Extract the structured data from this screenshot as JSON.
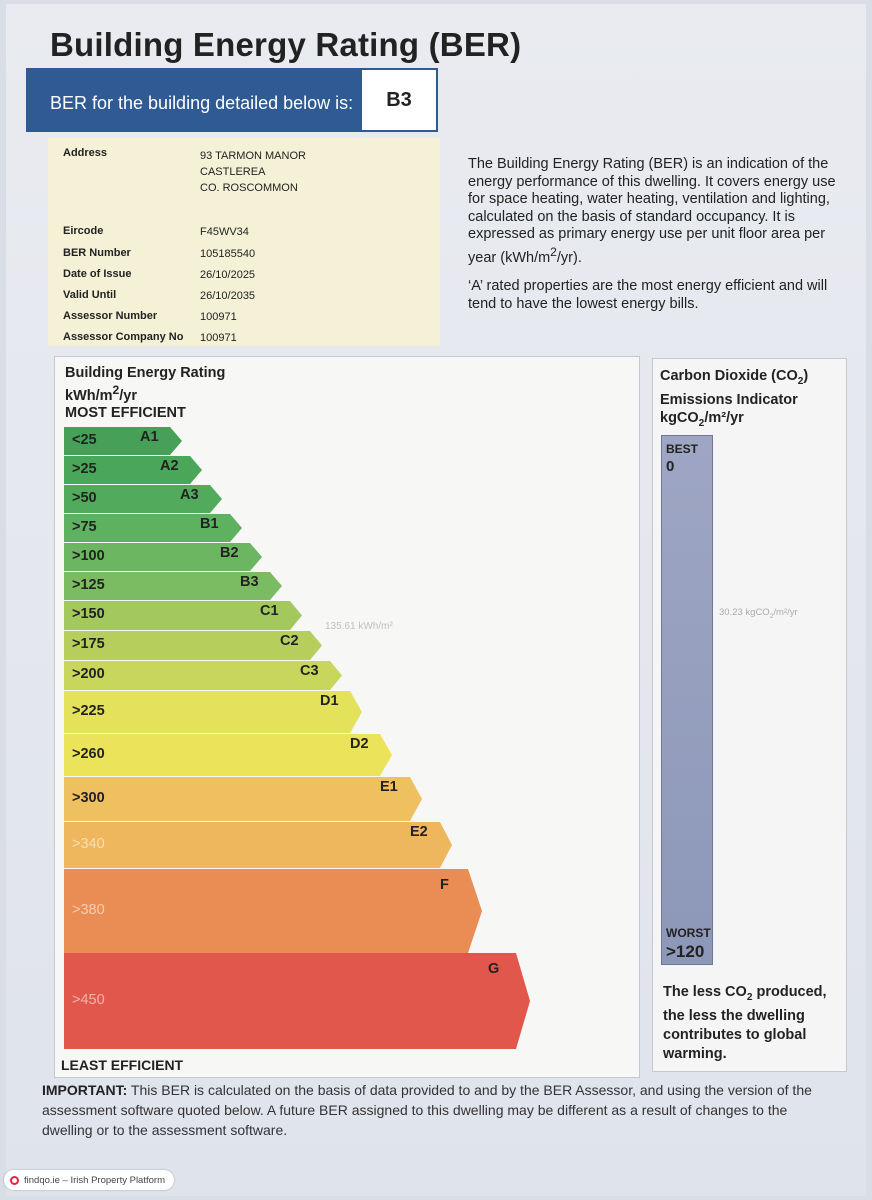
{
  "header": {
    "title": "Building Energy Rating (BER)",
    "ber_label": "BER for the building detailed below is:",
    "ber_value": "B3"
  },
  "details": {
    "address_label": "Address",
    "address_lines": [
      "93 TARMON MANOR",
      "CASTLEREA",
      "CO. ROSCOMMON"
    ],
    "rows": [
      {
        "label": "Eircode",
        "value": "F45WV34"
      },
      {
        "label": "BER Number",
        "value": "105185540"
      },
      {
        "label": "Date of Issue",
        "value": "26/10/2025"
      },
      {
        "label": "Valid Until",
        "value": "26/10/2035"
      },
      {
        "label": "Assessor Number",
        "value": "100971"
      },
      {
        "label": "Assessor Company No",
        "value": "100971"
      }
    ]
  },
  "info": {
    "paragraph1_pre": "The Building Energy Rating (BER) is an indication of the energy performance of this dwelling.  It covers energy use for space heating, water heating, ventilation and lighting, calculated on the basis of standard occupancy. It is expressed as primary energy use per unit floor area per year (kWh/m",
    "paragraph1_sup": "2",
    "paragraph1_post": "/yr).",
    "paragraph2": "‘A’ rated properties are the most energy efficient and will tend to have the lowest energy bills."
  },
  "rating_chart": {
    "title": "Building Energy Rating",
    "unit_pre": "kWh/m",
    "unit_sup": "2",
    "unit_post": "/yr",
    "most_efficient": "MOST EFFICIENT",
    "least_efficient": "LEAST EFFICIENT",
    "rating_value": "135.61 kWh/m²",
    "bands": [
      {
        "range": "<25",
        "letter": "A1",
        "color": "#46a057"
      },
      {
        "range": ">25",
        "letter": "A2",
        "color": "#4aa659"
      },
      {
        "range": ">50",
        "letter": "A3",
        "color": "#52ab5c"
      },
      {
        "range": ">75",
        "letter": "B1",
        "color": "#5eb15f"
      },
      {
        "range": ">100",
        "letter": "B2",
        "color": "#6cb661"
      },
      {
        "range": ">125",
        "letter": "B3",
        "color": "#7bbb62"
      },
      {
        "range": ">150",
        "letter": "C1",
        "color": "#a3c85e"
      },
      {
        "range": ">175",
        "letter": "C2",
        "color": "#b6cf5c"
      },
      {
        "range": ">200",
        "letter": "C3",
        "color": "#c8d65b"
      },
      {
        "range": ">225",
        "letter": "D1",
        "color": "#e3e25a"
      },
      {
        "range": ">260",
        "letter": "D2",
        "color": "#ebe35a"
      },
      {
        "range": ">300",
        "letter": "E1",
        "color": "#efc060"
      },
      {
        "range": ">340",
        "letter": "E2",
        "color": "#eeb75e"
      },
      {
        "range": ">380",
        "letter": "F",
        "color": "#ea8d55"
      },
      {
        "range": ">450",
        "letter": "G",
        "color": "#e2574c"
      }
    ]
  },
  "co2": {
    "title_pre": "Carbon Dioxide (CO",
    "title_sub": "2",
    "title_post": ")",
    "title_line2": "Emissions Indicator",
    "unit_pre": "kgCO",
    "unit_sub": "2",
    "unit_post": "/m²/yr",
    "best_label": "BEST",
    "best_value": "0",
    "worst_label": "WORST",
    "worst_value": ">120",
    "value_pre": "30.23 kgCO",
    "value_sub": "2",
    "value_post": "/m²/yr",
    "note_pre": "The less CO",
    "note_sub": "2",
    "note_post": " produced, the less the dwelling contributes to global warming."
  },
  "footer": {
    "important_label": "IMPORTANT:",
    "important_text": " This BER is calculated on the basis of data provided to and by the BER Assessor, and using the version of the assessment software quoted below.  A future BER assigned to this dwelling may be different as a result of changes to the dwelling or to the assessment software."
  },
  "watermark": {
    "text": "findqo.ie – Irish Property Platform"
  }
}
